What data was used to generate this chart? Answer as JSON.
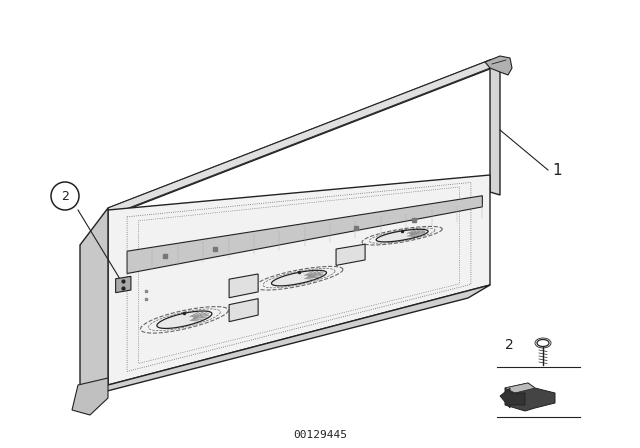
{
  "bg_color": "#ffffff",
  "fig_width": 6.4,
  "fig_height": 4.48,
  "dpi": 100,
  "part_number": "00129445",
  "label1_text": "1",
  "label2_text": "2",
  "label2b_text": "2",
  "color_main": "#222222",
  "color_face": "#f5f5f5",
  "color_top": "#e0e0e0",
  "color_left": "#d0d0d0",
  "color_bottom": "#c8c8c8",
  "color_right": "#d8d8d8",
  "color_dot": "#666666"
}
